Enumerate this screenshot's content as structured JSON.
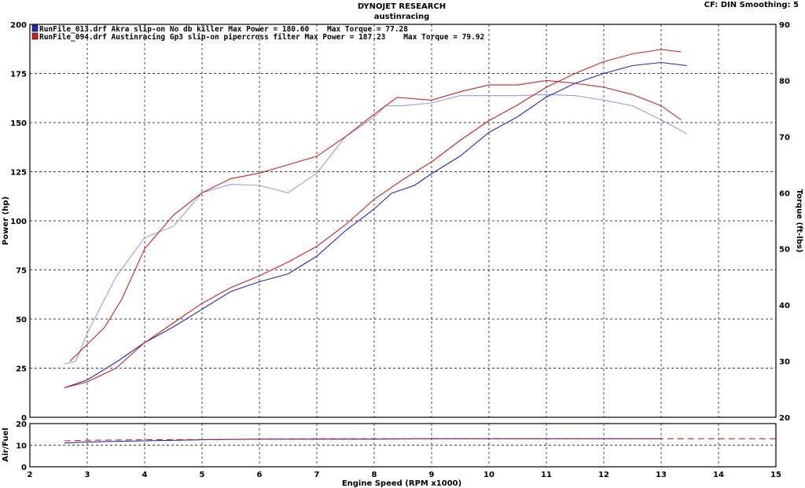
{
  "header": {
    "title": "DYNOJET RESEARCH",
    "subtitle": "austinracing",
    "settings": "CF: DIN  Smoothing: 5"
  },
  "chart_data": {
    "type": "line",
    "xlabel": "Engine Speed (RPM x1000)",
    "ylabel_left": "Power (hp)",
    "ylabel_right": "Torque (ft-lbs)",
    "ylabel_af": "Air/Fuel",
    "xlim": [
      2,
      15
    ],
    "x_ticks": [
      "2",
      "3",
      "4",
      "5",
      "6",
      "7",
      "8",
      "9",
      "10",
      "11",
      "12",
      "13",
      "14",
      "15"
    ],
    "power_ylim": [
      0,
      200
    ],
    "power_ticks": [
      "0",
      "25",
      "50",
      "75",
      "100",
      "125",
      "150",
      "175",
      "200"
    ],
    "torque_ylim": [
      20,
      90
    ],
    "torque_ticks": [
      "20",
      "30",
      "40",
      "50",
      "60",
      "70",
      "80",
      "90"
    ],
    "af_ylim": [
      0,
      20
    ],
    "af_ticks": [
      "0",
      "10",
      "20"
    ],
    "grid": true,
    "legend_position": "top-left",
    "series": [
      {
        "name": "RunFile_013.drf Akra slip-on No db killer Max Power = 180.60    Max Torque = 77.28",
        "color": "#2626b8",
        "torque_color": "#9a9ae6",
        "power": [
          [
            2.6,
            15
          ],
          [
            3,
            19
          ],
          [
            3.5,
            28
          ],
          [
            4,
            38
          ],
          [
            4.5,
            46
          ],
          [
            5,
            55
          ],
          [
            5.5,
            64
          ],
          [
            6,
            69
          ],
          [
            6.5,
            73
          ],
          [
            7,
            82
          ],
          [
            7.5,
            95
          ],
          [
            8,
            106
          ],
          [
            8.3,
            114
          ],
          [
            8.7,
            118
          ],
          [
            9,
            124
          ],
          [
            9.5,
            133
          ],
          [
            10,
            145
          ],
          [
            10.5,
            153
          ],
          [
            11,
            163
          ],
          [
            11.5,
            170
          ],
          [
            12,
            175
          ],
          [
            12.5,
            179
          ],
          [
            13,
            180.6
          ],
          [
            13.45,
            179
          ]
        ],
        "torque": [
          [
            2.6,
            29.5
          ],
          [
            2.8,
            30
          ],
          [
            3,
            35
          ],
          [
            3.5,
            45
          ],
          [
            4,
            52
          ],
          [
            4.5,
            54
          ],
          [
            5,
            60
          ],
          [
            5.5,
            61.5
          ],
          [
            6,
            61.3
          ],
          [
            6.5,
            60
          ],
          [
            7,
            63.5
          ],
          [
            7.5,
            70
          ],
          [
            8,
            73.5
          ],
          [
            8.2,
            75.5
          ],
          [
            8.5,
            75.5
          ],
          [
            9,
            76
          ],
          [
            9.5,
            77.3
          ],
          [
            10,
            77.3
          ],
          [
            10.5,
            77.3
          ],
          [
            11,
            77.5
          ],
          [
            11.5,
            77.3
          ],
          [
            12,
            76.5
          ],
          [
            12.5,
            75.5
          ],
          [
            13,
            73
          ],
          [
            13.45,
            70.5
          ]
        ],
        "afr": [
          [
            2.6,
            11
          ],
          [
            3,
            11.5
          ],
          [
            4,
            12
          ],
          [
            5,
            12.5
          ],
          [
            6,
            12.8
          ],
          [
            7,
            12.8
          ],
          [
            8,
            12.8
          ],
          [
            9,
            13
          ],
          [
            10,
            13
          ],
          [
            11,
            13
          ],
          [
            12,
            13
          ],
          [
            13,
            13
          ]
        ]
      },
      {
        "name": "RunFile_094.drf Austinracing Gp3 slip-on pipercross filter Max Power = 187.23    Max Torque = 79.92",
        "color": "#cc2020",
        "torque_color": "#cc2020",
        "power": [
          [
            2.6,
            15
          ],
          [
            3,
            18
          ],
          [
            3.5,
            25
          ],
          [
            4,
            38
          ],
          [
            4.5,
            48
          ],
          [
            5,
            58
          ],
          [
            5.5,
            66
          ],
          [
            6,
            72
          ],
          [
            6.5,
            79
          ],
          [
            7,
            87
          ],
          [
            7.5,
            98
          ],
          [
            8,
            111
          ],
          [
            8.5,
            121
          ],
          [
            9,
            130
          ],
          [
            9.5,
            141
          ],
          [
            10,
            151
          ],
          [
            10.5,
            159
          ],
          [
            11,
            168
          ],
          [
            11.5,
            175
          ],
          [
            12,
            181
          ],
          [
            12.5,
            185
          ],
          [
            13,
            187.2
          ],
          [
            13.35,
            186
          ]
        ],
        "torque": [
          [
            2.7,
            30
          ],
          [
            2.9,
            32
          ],
          [
            3,
            33
          ],
          [
            3.3,
            36
          ],
          [
            3.6,
            41
          ],
          [
            4,
            50
          ],
          [
            4.5,
            56
          ],
          [
            5,
            60
          ],
          [
            5.5,
            62.5
          ],
          [
            6,
            63.5
          ],
          [
            6.5,
            65
          ],
          [
            7,
            66.5
          ],
          [
            7.5,
            70
          ],
          [
            8,
            74
          ],
          [
            8.4,
            77
          ],
          [
            9,
            76.5
          ],
          [
            9.5,
            78
          ],
          [
            10,
            79.2
          ],
          [
            10.5,
            79.2
          ],
          [
            11,
            80
          ],
          [
            11.5,
            79.5
          ],
          [
            12,
            78.8
          ],
          [
            12.5,
            77.5
          ],
          [
            13,
            75.5
          ],
          [
            13.35,
            73
          ]
        ],
        "afr": [
          [
            2.6,
            12
          ],
          [
            3,
            12.3
          ],
          [
            4,
            12.5
          ],
          [
            5,
            12.6
          ],
          [
            6,
            12.8
          ],
          [
            7,
            13
          ],
          [
            8,
            13
          ],
          [
            9,
            13
          ],
          [
            10,
            13
          ],
          [
            11,
            13
          ],
          [
            12,
            13
          ],
          [
            13,
            13
          ],
          [
            15,
            13
          ]
        ]
      }
    ]
  }
}
